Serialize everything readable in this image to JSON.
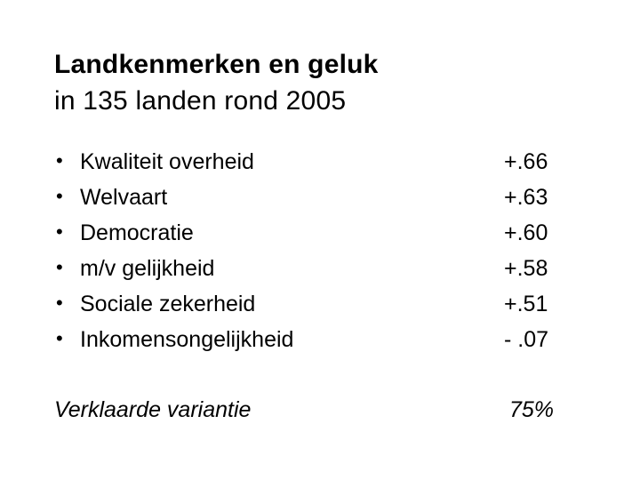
{
  "slide": {
    "title_line1": "Landkenmerken en geluk",
    "title_line2": "in 135 landen rond 2005",
    "bullet_char": "•",
    "items": [
      {
        "label": "Kwaliteit overheid",
        "value": "+.66"
      },
      {
        "label": "Welvaart",
        "value": "+.63"
      },
      {
        "label": "Democratie",
        "value": "+.60"
      },
      {
        "label": "m/v gelijkheid",
        "value": "+.58"
      },
      {
        "label": "Sociale zekerheid",
        "value": "+.51"
      },
      {
        "label": "Inkomensongelijkheid",
        "value": "- .07"
      }
    ],
    "footer": {
      "label": "Verklaarde variantie",
      "value": "75%"
    },
    "colors": {
      "background": "#ffffff",
      "text": "#000000"
    }
  }
}
